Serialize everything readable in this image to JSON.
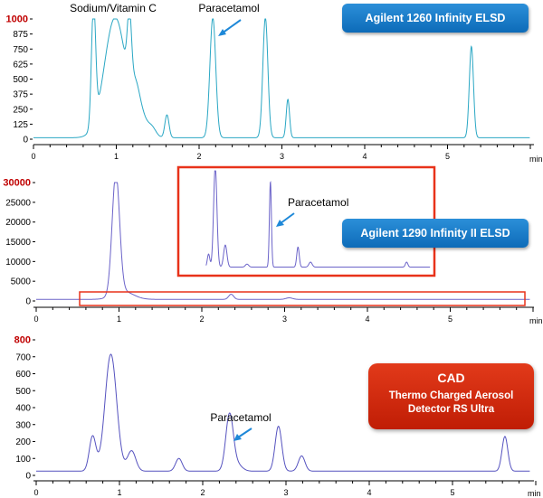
{
  "colors": {
    "elsd1260": "#2aa7c4",
    "elsd1290": "#6b63c9",
    "cad": "#5552bf",
    "callout": "#e8321a",
    "arrow": "#1e88d8",
    "ymax_label": "#c00000",
    "badge_blue": "#1479c9",
    "badge_red": "#d42a0f"
  },
  "badges": {
    "elsd1260": "Agilent 1260 Infinity ELSD",
    "elsd1290": "Agilent 1290 Infinity II ELSD",
    "cad_title": "CAD",
    "cad_line1": "Thermo Charged Aerosol",
    "cad_line2": "Detector RS Ultra"
  },
  "chart_data": [
    {
      "type": "line",
      "x_unit": "min",
      "xlim": [
        0,
        6
      ],
      "ylim": [
        0,
        1000
      ],
      "yticks": [
        "0",
        "125",
        "250",
        "375",
        "500",
        "625",
        "750",
        "875",
        "1000"
      ],
      "xticks": [
        "0",
        "1",
        "2",
        "3",
        "4",
        "5"
      ],
      "annotations": [
        "Sodium/Vitamin C",
        "Paracetamol"
      ],
      "baseline": 12,
      "peaks": [
        {
          "x": 0.72,
          "height": 1000,
          "width": 0.025
        },
        {
          "x": 0.98,
          "height": 1000,
          "width": 0.13
        },
        {
          "x": 1.15,
          "height": 560,
          "width": 0.025
        },
        {
          "x": 1.22,
          "height": 250,
          "width": 0.05
        },
        {
          "x": 1.3,
          "height": 150,
          "width": 0.06
        },
        {
          "x": 1.42,
          "height": 80,
          "width": 0.05
        },
        {
          "x": 1.6,
          "height": 190,
          "width": 0.025
        },
        {
          "x": 2.15,
          "height": 1000,
          "width": 0.035
        },
        {
          "x": 2.78,
          "height": 1000,
          "width": 0.03
        },
        {
          "x": 3.05,
          "height": 320,
          "width": 0.02
        },
        {
          "x": 5.25,
          "height": 760,
          "width": 0.025
        }
      ]
    },
    {
      "type": "line",
      "x_unit": "min",
      "xlim": [
        0,
        6
      ],
      "ylim": [
        0,
        30000
      ],
      "yticks": [
        "0",
        "5000",
        "10000",
        "15000",
        "20000",
        "25000",
        "30000"
      ],
      "xticks": [
        "0",
        "1",
        "2",
        "3",
        "4",
        "5"
      ],
      "baseline": 400,
      "peaks": [
        {
          "x": 0.96,
          "height": 30500,
          "width": 0.045
        },
        {
          "x": 1.05,
          "height": 2000,
          "width": 0.12
        },
        {
          "x": 2.35,
          "height": 1300,
          "width": 0.03
        },
        {
          "x": 3.05,
          "height": 400,
          "width": 0.04
        }
      ],
      "inset": {
        "annotation": "Paracetamol",
        "xlim": [
          1.75,
          4.75
        ],
        "baseline": 0.04,
        "peaks": [
          {
            "x": 2.08,
            "height": 0.13,
            "width": 0.015
          },
          {
            "x": 2.16,
            "height": 1.0,
            "width": 0.02
          },
          {
            "x": 2.28,
            "height": 0.22,
            "width": 0.02
          },
          {
            "x": 2.54,
            "height": 0.03,
            "width": 0.02
          },
          {
            "x": 2.82,
            "height": 0.85,
            "width": 0.012
          },
          {
            "x": 3.15,
            "height": 0.2,
            "width": 0.015
          },
          {
            "x": 3.3,
            "height": 0.05,
            "width": 0.02
          },
          {
            "x": 4.45,
            "height": 0.05,
            "width": 0.015
          }
        ]
      }
    },
    {
      "type": "line",
      "x_unit": "min",
      "xlim": [
        0,
        6
      ],
      "ylim": [
        0,
        800
      ],
      "yticks": [
        "0",
        "100",
        "200",
        "300",
        "400",
        "500",
        "600",
        "700",
        "800"
      ],
      "xticks": [
        "0",
        "1",
        "2",
        "3",
        "4",
        "5"
      ],
      "annotations": [
        "Paracetamol"
      ],
      "baseline": 25,
      "peaks": [
        {
          "x": 0.68,
          "height": 205,
          "width": 0.04
        },
        {
          "x": 0.9,
          "height": 690,
          "width": 0.07
        },
        {
          "x": 1.15,
          "height": 120,
          "width": 0.05
        },
        {
          "x": 1.72,
          "height": 75,
          "width": 0.04
        },
        {
          "x": 2.33,
          "height": 330,
          "width": 0.045
        },
        {
          "x": 2.42,
          "height": 40,
          "width": 0.06
        },
        {
          "x": 2.92,
          "height": 265,
          "width": 0.04
        },
        {
          "x": 3.2,
          "height": 90,
          "width": 0.04
        },
        {
          "x": 5.65,
          "height": 205,
          "width": 0.035
        }
      ]
    }
  ]
}
